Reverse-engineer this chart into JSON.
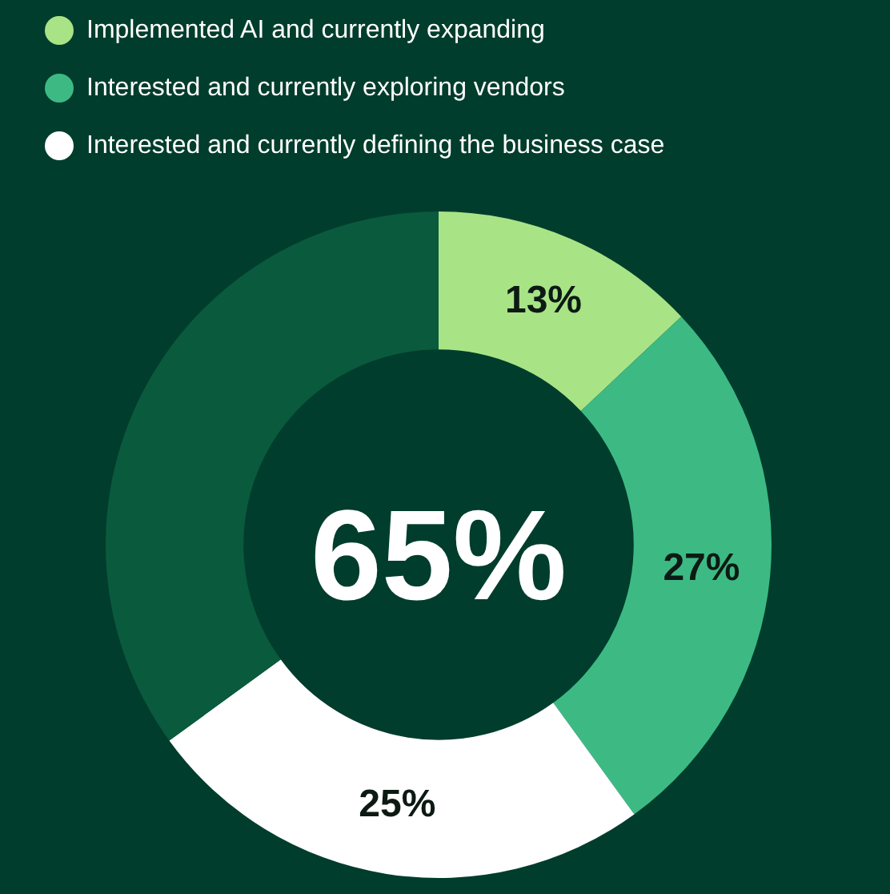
{
  "chart_data": {
    "type": "donut",
    "categories": [
      "Implemented AI and currently expanding",
      "Interested and currently exploring vendors",
      "Interested and currently defining the business case",
      null
    ],
    "values": [
      13,
      27,
      25,
      35
    ],
    "colors": [
      "#a8e486",
      "#3dba84",
      "#ffffff",
      "#0a5a3e"
    ],
    "value_labels": [
      "13%",
      "27%",
      "25%",
      null
    ],
    "annotations": [
      "65%"
    ],
    "legend": "top left"
  }
}
